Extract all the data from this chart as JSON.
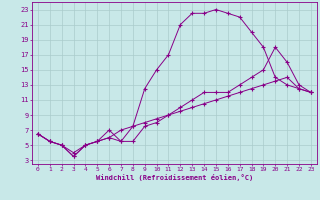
{
  "xlabel": "Windchill (Refroidissement éolien,°C)",
  "background_color": "#c8e8e8",
  "grid_color": "#aacccc",
  "line_color": "#880088",
  "xlim": [
    -0.5,
    23.5
  ],
  "ylim": [
    2.5,
    24
  ],
  "xticks": [
    0,
    1,
    2,
    3,
    4,
    5,
    6,
    7,
    8,
    9,
    10,
    11,
    12,
    13,
    14,
    15,
    16,
    17,
    18,
    19,
    20,
    21,
    22,
    23
  ],
  "yticks": [
    3,
    5,
    7,
    9,
    11,
    13,
    15,
    17,
    19,
    21,
    23
  ],
  "curve1_x": [
    0,
    1,
    2,
    3,
    4,
    5,
    6,
    7,
    8,
    9,
    10,
    11,
    12,
    13,
    14,
    15,
    16,
    17,
    18,
    19,
    20,
    21,
    22,
    23
  ],
  "curve1_y": [
    6.5,
    5.5,
    5.0,
    3.5,
    5.0,
    5.5,
    6.0,
    5.5,
    7.5,
    12.5,
    15.0,
    17.0,
    21.0,
    22.5,
    22.5,
    23.0,
    22.5,
    22.0,
    20.0,
    18.0,
    14.0,
    13.0,
    12.5,
    12.0
  ],
  "curve2_x": [
    0,
    1,
    2,
    3,
    4,
    5,
    6,
    7,
    8,
    9,
    10,
    11,
    12,
    13,
    14,
    15,
    16,
    17,
    18,
    19,
    20,
    21,
    22,
    23
  ],
  "curve2_y": [
    6.5,
    5.5,
    5.0,
    3.5,
    5.0,
    5.5,
    7.0,
    5.5,
    5.5,
    7.5,
    8.0,
    9.0,
    10.0,
    11.0,
    12.0,
    12.0,
    12.0,
    13.0,
    14.0,
    15.0,
    18.0,
    16.0,
    13.0,
    12.0
  ],
  "curve3_x": [
    0,
    1,
    2,
    3,
    4,
    5,
    6,
    7,
    8,
    9,
    10,
    11,
    12,
    13,
    14,
    15,
    16,
    17,
    18,
    19,
    20,
    21,
    22,
    23
  ],
  "curve3_y": [
    6.5,
    5.5,
    5.0,
    4.0,
    5.0,
    5.5,
    6.0,
    7.0,
    7.5,
    8.0,
    8.5,
    9.0,
    9.5,
    10.0,
    10.5,
    11.0,
    11.5,
    12.0,
    12.5,
    13.0,
    13.5,
    14.0,
    12.5,
    12.0
  ],
  "ylabel_fontsize": 5,
  "xlabel_fontsize": 5,
  "tick_fontsize": 4.5
}
